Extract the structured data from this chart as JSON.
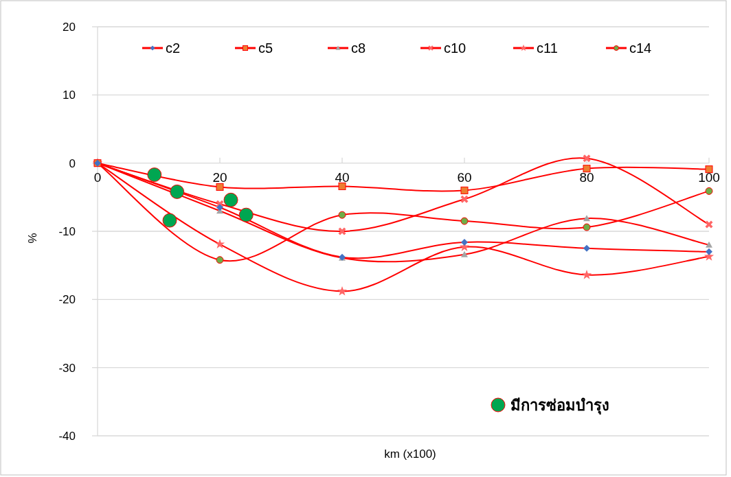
{
  "chart_data": {
    "type": "line",
    "xlabel": "km (x100)",
    "ylabel": "%",
    "x": [
      0,
      20,
      40,
      60,
      80,
      100
    ],
    "xlim": [
      0,
      100
    ],
    "xticks": [
      0,
      20,
      40,
      60,
      80,
      100
    ],
    "ylim": [
      -40,
      20
    ],
    "yticks": [
      -40,
      -30,
      -20,
      -10,
      0,
      10,
      20
    ],
    "grid": "y",
    "legend": "top",
    "series": [
      {
        "name": "c2",
        "color": "#ff0000",
        "colors": [
          "#4472c4",
          "#4472c4",
          "#4472c4",
          "#4472c4",
          "#4472c4",
          "#4472c4"
        ],
        "marker": "diamond",
        "values": [
          0,
          -6.5,
          -13.8,
          -11.6,
          -12.5,
          -13.0
        ]
      },
      {
        "name": "c5",
        "color": "#ff0000",
        "colors": [
          "#ed7d31",
          "#ed7d31",
          "#ed7d31",
          "#ed7d31",
          "#ed7d31",
          "#ed7d31"
        ],
        "marker": "square",
        "values": [
          0,
          -3.5,
          -3.4,
          -4.0,
          -0.8,
          -0.9
        ]
      },
      {
        "name": "c8",
        "color": "#ff0000",
        "colors": [
          "#a5a5a5",
          "#a5a5a5",
          "#a5a5a5",
          "#a5a5a5",
          "#a5a5a5",
          "#a5a5a5"
        ],
        "marker": "triangle",
        "values": [
          0,
          -7.0,
          -13.9,
          -13.4,
          -8.1,
          -12.0
        ]
      },
      {
        "name": "c10",
        "color": "#ff0000",
        "colors": [
          "#ff6666",
          "#ff6666",
          "#ff6666",
          "#ff6666",
          "#ff6666",
          "#ff6666"
        ],
        "marker": "cross",
        "values": [
          0,
          -6.0,
          -10.0,
          -5.3,
          0.7,
          -9.0
        ]
      },
      {
        "name": "c11",
        "color": "#ff0000",
        "colors": [
          "#ff6666",
          "#ff6666",
          "#ff6666",
          "#ff6666",
          "#ff6666",
          "#ff6666"
        ],
        "marker": "star",
        "values": [
          0,
          -11.9,
          -18.8,
          -12.3,
          -16.4,
          -13.7
        ]
      },
      {
        "name": "c14",
        "color": "#ff0000",
        "colors": [
          "#70ad47",
          "#70ad47",
          "#70ad47",
          "#70ad47",
          "#70ad47",
          "#70ad47"
        ],
        "marker": "circle",
        "values": [
          0,
          -14.2,
          -7.6,
          -8.5,
          -9.4,
          -4.1
        ]
      },
      {
        "name": "มีการซ่อมบำรุง",
        "type": "scatter",
        "color": "#00a651",
        "marker": "circle",
        "x": [
          9.3,
          13.0,
          11.8,
          21.8,
          24.3
        ],
        "values": [
          -1.7,
          -4.2,
          -8.4,
          -5.4,
          -7.6
        ]
      }
    ]
  }
}
